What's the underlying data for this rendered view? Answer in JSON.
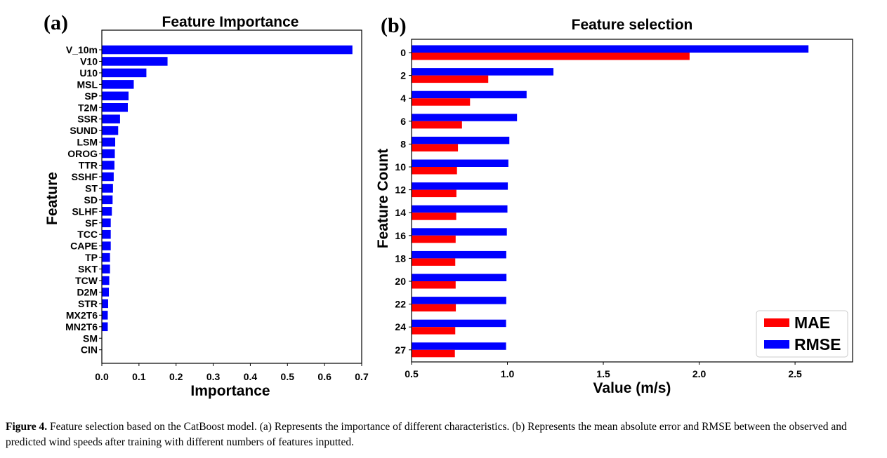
{
  "caption": {
    "label": "Figure 4.",
    "text": "Feature selection based on the CatBoost model. (a) Represents the importance of different characteristics. (b) Represents the mean absolute error and RMSE between the observed and predicted wind speeds after training with different numbers of features inputted."
  },
  "chart_data": [
    {
      "panel": "(a)",
      "type": "bar",
      "orientation": "horizontal",
      "title": "Feature Importance",
      "xlabel": "Importance",
      "ylabel": "Feature",
      "xlim": [
        0.0,
        0.7
      ],
      "xticks": [
        "0.0",
        "0.1",
        "0.2",
        "0.3",
        "0.4",
        "0.5",
        "0.6",
        "0.7"
      ],
      "grid": false,
      "color": "#0000ff",
      "categories": [
        "V_10m",
        "V10",
        "U10",
        "MSL",
        "SP",
        "T2M",
        "SSR",
        "SUND",
        "LSM",
        "OROG",
        "TTR",
        "SSHF",
        "ST",
        "SD",
        "SLHF",
        "SF",
        "TCC",
        "CAPE",
        "TP",
        "SKT",
        "TCW",
        "D2M",
        "STR",
        "MX2T6",
        "MN2T6",
        "SM",
        "CIN"
      ],
      "values": [
        0.675,
        0.177,
        0.12,
        0.086,
        0.072,
        0.07,
        0.049,
        0.044,
        0.036,
        0.035,
        0.034,
        0.032,
        0.03,
        0.029,
        0.027,
        0.024,
        0.024,
        0.024,
        0.022,
        0.022,
        0.02,
        0.019,
        0.017,
        0.016,
        0.016,
        0.0,
        0.0
      ]
    },
    {
      "panel": "(b)",
      "type": "bar",
      "orientation": "horizontal",
      "title": "Feature selection",
      "xlabel": "Value (m/s)",
      "ylabel": "Feature Count",
      "xlim": [
        0.5,
        2.8
      ],
      "xticks": [
        "0.5",
        "1.0",
        "1.5",
        "2.0",
        "2.5"
      ],
      "grid": false,
      "legend_position": "bottom-right",
      "categories": [
        "0",
        "2",
        "4",
        "6",
        "8",
        "10",
        "12",
        "14",
        "16",
        "18",
        "20",
        "22",
        "24",
        "27"
      ],
      "series": [
        {
          "name": "RMSE",
          "color": "#0000ff",
          "values": [
            2.57,
            1.24,
            1.1,
            1.05,
            1.01,
            1.005,
            1.002,
            1.0,
            0.997,
            0.994,
            0.995,
            0.994,
            0.993,
            0.993
          ]
        },
        {
          "name": "MAE",
          "color": "#ff0000",
          "values": [
            1.95,
            0.9,
            0.805,
            0.763,
            0.742,
            0.737,
            0.734,
            0.733,
            0.73,
            0.728,
            0.73,
            0.731,
            0.728,
            0.726
          ]
        }
      ],
      "legend_order": [
        "MAE",
        "RMSE"
      ]
    }
  ]
}
